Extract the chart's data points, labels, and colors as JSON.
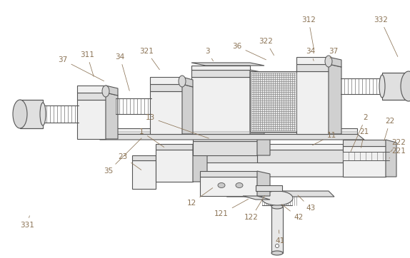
{
  "bg_color": "#ffffff",
  "line_color": "#555555",
  "label_color": "#8B7355",
  "fig_width": 5.74,
  "fig_height": 3.62,
  "dpi": 100
}
